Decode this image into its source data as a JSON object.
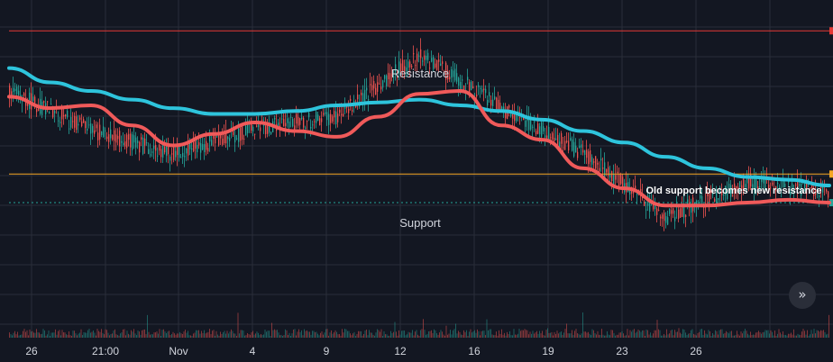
{
  "colors": {
    "background": "#131722",
    "grid": "#2a2e39",
    "candle_up": "#26a69a",
    "candle_down": "#ef5350",
    "ma_fast": "#f05a5a",
    "ma_slow": "#2ec4dc",
    "resistance": "#e53935",
    "support": "#f5a623",
    "dotted_line": "#26a69a"
  },
  "scroll_button": {
    "icon": "chevrons-right-icon",
    "glyph": "»"
  },
  "chart_data": {
    "type": "line",
    "title": "",
    "xlabel": "",
    "ylabel": "",
    "x_ticks": [
      "26",
      "21:00",
      "Nov",
      "4",
      "9",
      "12",
      "16",
      "19",
      "23",
      "26"
    ],
    "ylim": [
      0,
      100
    ],
    "grid": true,
    "annotations": [
      {
        "text": "Resistance",
        "level": 93
      },
      {
        "text": "Support",
        "level": 43
      },
      {
        "text": "Old support becomes new resistance"
      }
    ],
    "horizontal_levels": [
      {
        "name": "resistance",
        "value": 93,
        "style": "solid"
      },
      {
        "name": "support",
        "value": 43,
        "style": "solid"
      },
      {
        "name": "dotted",
        "value": 33,
        "style": "dotted"
      }
    ],
    "price_x": [
      0,
      10,
      20,
      30,
      40,
      50,
      60,
      70,
      80,
      90,
      100
    ],
    "price": [
      72,
      58,
      50,
      59,
      63,
      85,
      66,
      50,
      28,
      40,
      37
    ],
    "series": [
      {
        "x": [
          0,
          5,
          10,
          15,
          20,
          25,
          30,
          35,
          40,
          45,
          50,
          55,
          60,
          65,
          70,
          75,
          80,
          85,
          90,
          95,
          100
        ],
        "values": [
          80,
          75,
          72,
          69,
          66,
          64,
          64,
          65,
          67,
          68,
          69,
          67,
          65,
          62,
          58,
          54,
          49,
          45,
          42,
          41,
          39
        ]
      },
      {
        "x": [
          0,
          5,
          10,
          15,
          20,
          25,
          30,
          35,
          40,
          45,
          50,
          55,
          60,
          65,
          70,
          75,
          80,
          85,
          90,
          95,
          100
        ],
        "values": [
          70,
          66,
          67,
          60,
          53,
          57,
          61,
          58,
          56,
          63,
          71,
          72,
          60,
          55,
          45,
          38,
          32,
          32,
          33,
          34,
          33
        ]
      }
    ]
  }
}
